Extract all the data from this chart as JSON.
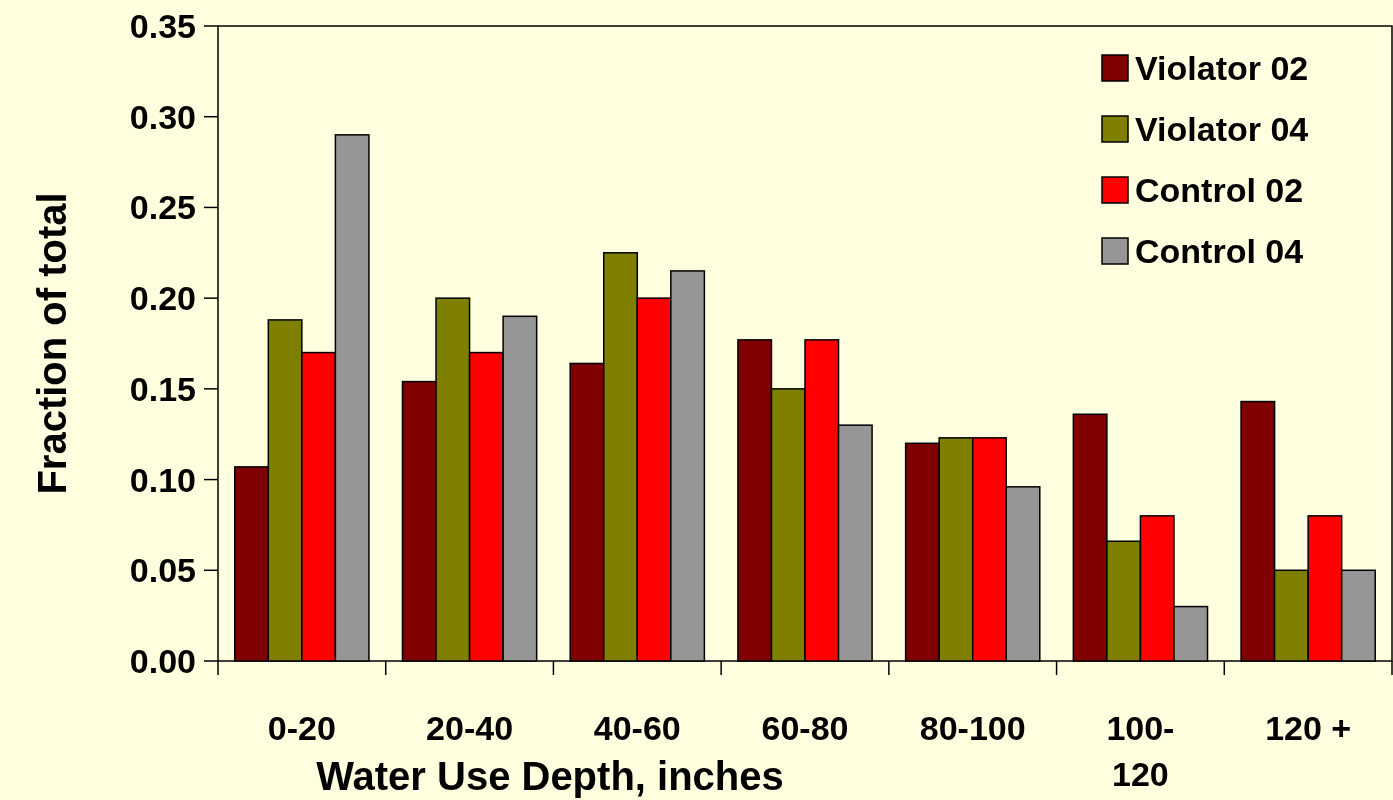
{
  "chart_data": {
    "type": "bar",
    "xlabel": "Water Use Depth, inches",
    "ylabel": "Fraction of total",
    "categories": [
      "0-20",
      "20-40",
      "40-60",
      "60-80",
      "80-100",
      "100-120",
      "120 +"
    ],
    "series": [
      {
        "name": "Violator 02",
        "color": "#800000",
        "values": [
          0.107,
          0.154,
          0.164,
          0.177,
          0.12,
          0.136,
          0.143
        ]
      },
      {
        "name": "Violator 04",
        "color": "#808000",
        "values": [
          0.188,
          0.2,
          0.225,
          0.15,
          0.123,
          0.066,
          0.05
        ]
      },
      {
        "name": "Control 02",
        "color": "#ff0000",
        "values": [
          0.17,
          0.17,
          0.2,
          0.177,
          0.123,
          0.08,
          0.08
        ]
      },
      {
        "name": "Control 04",
        "color": "#969696",
        "values": [
          0.29,
          0.19,
          0.215,
          0.13,
          0.096,
          0.03,
          0.05
        ]
      }
    ],
    "ylim": [
      0,
      0.35
    ],
    "yticks": [
      {
        "value": 0,
        "label": "0.00"
      },
      {
        "value": 0.05,
        "label": "0.05"
      },
      {
        "value": 0.1,
        "label": "0.10"
      },
      {
        "value": 0.15,
        "label": "0.15"
      },
      {
        "value": 0.2,
        "label": "0.20"
      },
      {
        "value": 0.25,
        "label": "0.25"
      },
      {
        "value": 0.3,
        "label": "0.30"
      },
      {
        "value": 0.35,
        "label": "0.35"
      }
    ],
    "legend": "top right"
  }
}
